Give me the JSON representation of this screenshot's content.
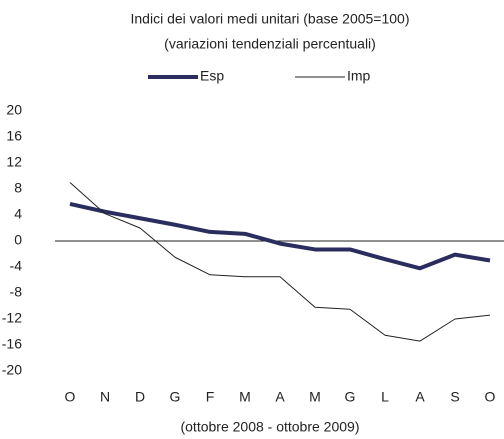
{
  "chart_data": {
    "type": "line",
    "title": "Indici dei valori medi unitari (base 2005=100)",
    "subtitle": "(variazioni tendenziali percentuali)",
    "x_label": "(ottobre 2008 - ottobre 2009)",
    "categories": [
      "O",
      "N",
      "D",
      "G",
      "F",
      "M",
      "A",
      "M",
      "G",
      "L",
      "A",
      "S",
      "O"
    ],
    "series": [
      {
        "name": "Esp",
        "color": "#2b2d5e",
        "values": [
          5.7,
          4.5,
          3.5,
          2.5,
          1.4,
          1.1,
          -0.4,
          -1.3,
          -1.3,
          -2.8,
          -4.2,
          -2.1,
          -3.0
        ]
      },
      {
        "name": "Imp",
        "color": "#222222",
        "values": [
          9.0,
          4.2,
          2.0,
          -2.5,
          -5.2,
          -5.5,
          -5.5,
          -10.2,
          -10.5,
          -14.5,
          -15.4,
          -12.0,
          -11.4
        ]
      }
    ],
    "ylim": [
      -20,
      20
    ],
    "yticks": [
      -20,
      -16,
      -12,
      -8,
      -4,
      0,
      4,
      8,
      12,
      16,
      20
    ],
    "legend": "top"
  }
}
